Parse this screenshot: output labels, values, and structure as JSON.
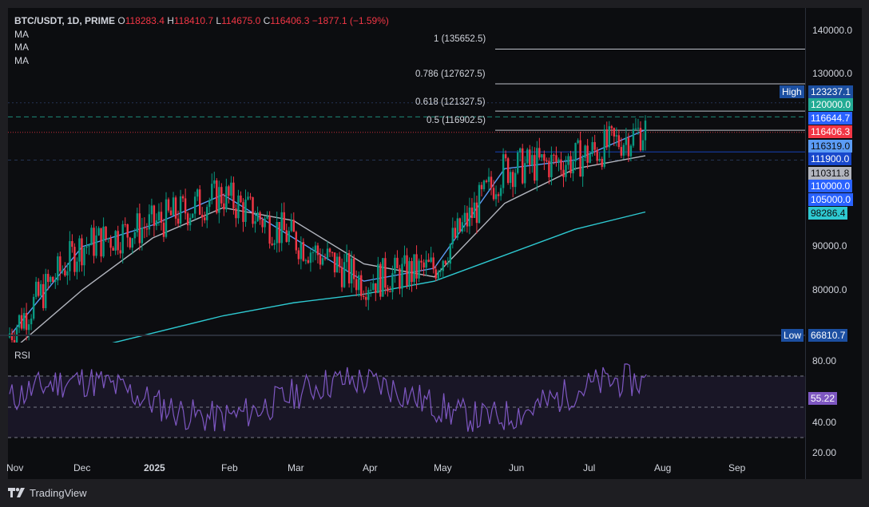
{
  "header": {
    "symbol": "BTC/USDT, 1D, PRIME",
    "o_label": "O",
    "o_value": "118283.4",
    "h_label": "H",
    "h_value": "118410.7",
    "l_label": "L",
    "l_value": "114675.0",
    "c_label": "C",
    "c_value": "116406.3",
    "change": "−1877.1 (−1.59%)",
    "indicators": [
      "MA",
      "MA",
      "MA"
    ]
  },
  "fib_levels": [
    {
      "label": "1 (135652.5)",
      "value": 135652.5
    },
    {
      "label": "0.786 (127627.5)",
      "value": 127627.5
    },
    {
      "label": "0.618 (121327.5)",
      "value": 121327.5
    },
    {
      "label": "0.5 (116902.5)",
      "value": 116902.5
    }
  ],
  "price_axis": {
    "ticks": [
      "140000.0",
      "130000.0",
      "90000.0",
      "80000.0"
    ],
    "tags": [
      {
        "text": "High",
        "kind": "label",
        "bg": "#1c4fa1",
        "color": "#ffffff",
        "value": 123237.1
      },
      {
        "text": "123237.1",
        "kind": "value",
        "bg": "#1c4fa1",
        "color": "#ffffff",
        "value": 123237.1
      },
      {
        "text": "120000.0",
        "kind": "value",
        "bg": "#22ab94",
        "color": "#ffffff",
        "value": 120000.0
      },
      {
        "text": "116644.7",
        "kind": "value",
        "bg": "#2962ff",
        "color": "#ffffff",
        "value": 116644.7
      },
      {
        "text": "116406.3",
        "kind": "value",
        "bg": "#f23645",
        "color": "#ffffff",
        "value": 116406.3
      },
      {
        "text": "116319.0",
        "kind": "value",
        "bg": "#5b9cf6",
        "color": "#0c0d10",
        "value": 116319.0
      },
      {
        "text": "111900.0",
        "kind": "value",
        "bg": "#1848cc",
        "color": "#ffffff",
        "value": 111900.0
      },
      {
        "text": "110311.8",
        "kind": "value",
        "bg": "#b2b5be",
        "color": "#0c0d10",
        "value": 110311.8
      },
      {
        "text": "110000.0",
        "kind": "value",
        "bg": "#2962ff",
        "color": "#ffffff",
        "value": 110000.0
      },
      {
        "text": "105000.0",
        "kind": "value",
        "bg": "#2962ff",
        "color": "#ffffff",
        "value": 105000.0
      },
      {
        "text": "98286.4",
        "kind": "value",
        "bg": "#2ec9d1",
        "color": "#0c0d10",
        "value": 98286.4
      },
      {
        "text": "Low",
        "kind": "label",
        "bg": "#1c4fa1",
        "color": "#ffffff",
        "value": 66810.7
      },
      {
        "text": "66810.7",
        "kind": "value",
        "bg": "#1c4fa1",
        "color": "#ffffff",
        "value": 66810.7
      }
    ]
  },
  "rsi": {
    "label": "RSI",
    "ticks": [
      "80.00",
      "40.00",
      "20.00"
    ],
    "value": "55.22",
    "value_bg": "#7e57c2"
  },
  "time_axis": {
    "labels": [
      "Nov",
      "Dec",
      "2025",
      "Feb",
      "Mar",
      "Apr",
      "May",
      "Jun",
      "Jul",
      "Aug",
      "Sep"
    ]
  },
  "chart_data": {
    "type": "line",
    "title": "BTC/USDT, 1D, PRIME",
    "x": [
      "Nov",
      "Dec",
      "2025",
      "Feb",
      "Mar",
      "Apr",
      "May",
      "Jun",
      "Jul",
      "Aug"
    ],
    "series": [
      {
        "name": "MA",
        "color": "#5b9cf6",
        "values": [
          70000,
          90000,
          95000,
          102000,
          92000,
          82000,
          85000,
          108000,
          110000,
          117000
        ]
      },
      {
        "name": "MA",
        "color": "#b2b5be",
        "values": [
          66000,
          80000,
          92000,
          99000,
          96000,
          86000,
          83000,
          100000,
          108000,
          111000
        ]
      },
      {
        "name": "MA",
        "color": "#2ec9d1",
        "values": [
          62000,
          66000,
          70000,
          74000,
          77000,
          79000,
          82000,
          88000,
          94000,
          98000
        ]
      }
    ],
    "ylim": [
      66000,
      142000
    ],
    "colors": {
      "up": "#089981",
      "down": "#f23645",
      "rsi": "#7e57c2"
    }
  },
  "brand": {
    "name": "TradingView"
  }
}
